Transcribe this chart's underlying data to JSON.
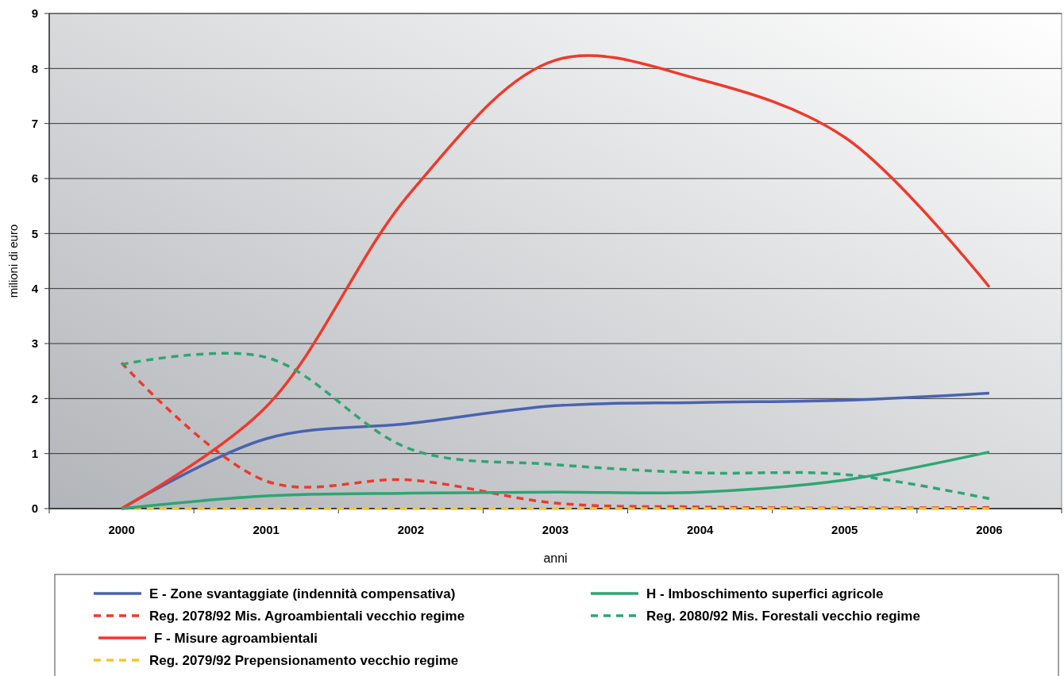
{
  "chart_data": {
    "type": "line",
    "xlabel": "anni",
    "ylabel": "milioni di euro",
    "categories": [
      "2000",
      "2001",
      "2002",
      "2003",
      "2004",
      "2005",
      "2006"
    ],
    "ylim": [
      0,
      9
    ],
    "yticks": [
      0,
      1,
      2,
      3,
      4,
      5,
      6,
      7,
      8,
      9
    ],
    "grid": "y",
    "legend": "bottom",
    "marker": "none",
    "series": [
      {
        "name": "E - Zone svantaggiate (indennità compensativa)",
        "color": "#4a62b0",
        "line_style": "solid",
        "values": [
          0,
          1.27,
          1.55,
          1.87,
          1.93,
          1.97,
          2.1
        ]
      },
      {
        "name": "Reg. 2078/92 Mis. Agroambientali vecchio regime",
        "color": "#ee3a2c",
        "line_style": "dashed",
        "values": [
          2.65,
          0.5,
          0.52,
          0.1,
          0.03,
          0.01,
          0.02
        ]
      },
      {
        "name": "F - Misure agroambientali",
        "color": "#ee3a2c",
        "line_style": "solid",
        "values": [
          0,
          1.85,
          5.75,
          8.15,
          7.8,
          6.75,
          4.03
        ]
      },
      {
        "name": "Reg. 2079/92 Prepensionamento vecchio regime",
        "color": "#f7c52a",
        "line_style": "dashed",
        "values": [
          0,
          0,
          0,
          0,
          0,
          0,
          0
        ]
      },
      {
        "name": "H - Imboschimento superfici agricole",
        "color": "#2fa574",
        "line_style": "solid",
        "values": [
          0,
          0.23,
          0.28,
          0.3,
          0.3,
          0.52,
          1.03
        ]
      },
      {
        "name": "Reg. 2080/92 Mis. Forestali vecchio regime",
        "color": "#2fa574",
        "line_style": "dashed",
        "values": [
          2.62,
          2.75,
          1.08,
          0.8,
          0.65,
          0.62,
          0.18
        ]
      }
    ]
  }
}
